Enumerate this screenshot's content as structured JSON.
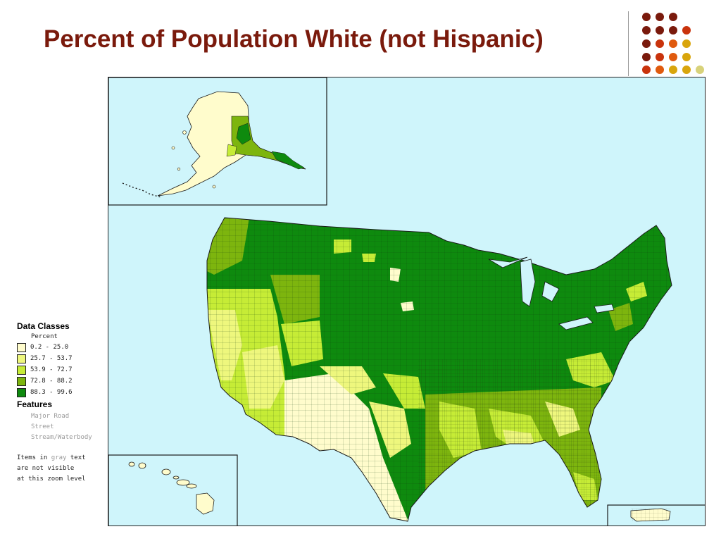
{
  "slide": {
    "title": "Percent of Population White (not Hispanic)"
  },
  "decor": {
    "dot_colors": [
      "#7a1a0c",
      "#c9330c",
      "#e05a0e",
      "#d9a50c",
      "#d8d27a"
    ]
  },
  "legend": {
    "heading": "Data Classes",
    "subheading": "Percent",
    "classes": [
      {
        "label": "0.2 - 25.0",
        "color": "#fffccc"
      },
      {
        "label": "25.7 - 53.7",
        "color": "#eef77d"
      },
      {
        "label": "53.9 - 72.7",
        "color": "#c6ec36"
      },
      {
        "label": "72.8 - 88.2",
        "color": "#7db50e"
      },
      {
        "label": "88.3 - 99.6",
        "color": "#0e8a0e"
      }
    ],
    "features_heading": "Features",
    "features": [
      "Major Road",
      "Street",
      "Stream/Waterbody"
    ],
    "note_prefix": "Items in ",
    "note_gray_word": "gray",
    "note_suffix": " text",
    "note_line2": "are not visible",
    "note_line3": "at this zoom level"
  },
  "map": {
    "water_color": "#cff5fb",
    "boundary_color": "#1a1a1a"
  }
}
